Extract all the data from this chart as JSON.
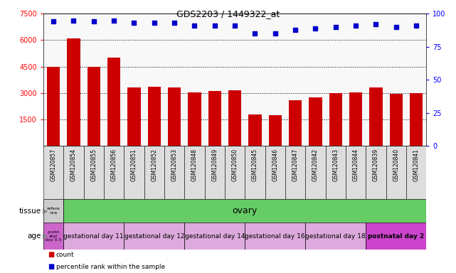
{
  "title": "GDS2203 / 1449322_at",
  "samples": [
    "GSM120857",
    "GSM120854",
    "GSM120855",
    "GSM120856",
    "GSM120851",
    "GSM120852",
    "GSM120853",
    "GSM120848",
    "GSM120849",
    "GSM120850",
    "GSM120845",
    "GSM120846",
    "GSM120847",
    "GSM120842",
    "GSM120843",
    "GSM120844",
    "GSM120839",
    "GSM120840",
    "GSM120841"
  ],
  "counts": [
    4500,
    6100,
    4500,
    5000,
    3300,
    3350,
    3300,
    3050,
    3100,
    3150,
    1800,
    1750,
    2600,
    2750,
    3000,
    3050,
    3300,
    2950,
    3000
  ],
  "percentiles": [
    94,
    95,
    94,
    95,
    93,
    93,
    93,
    91,
    91,
    91,
    85,
    85,
    88,
    89,
    90,
    91,
    92,
    90,
    91
  ],
  "ylim_left": [
    0,
    7500
  ],
  "yticks_left": [
    1500,
    3000,
    4500,
    6000,
    7500
  ],
  "ylim_right": [
    0,
    100
  ],
  "yticks_right": [
    0,
    25,
    50,
    75,
    100
  ],
  "bar_color": "#cc0000",
  "scatter_color": "#0000cc",
  "tissue_row": {
    "reference_label": "refere\nnce",
    "reference_color": "#cccccc",
    "ovary_label": "ovary",
    "ovary_color": "#66cc66"
  },
  "age_row": {
    "groups": [
      {
        "label": "postn\natal\nday 0.5",
        "color": "#cc66cc",
        "count": 1
      },
      {
        "label": "gestational day 11",
        "color": "#ddaadd",
        "count": 3
      },
      {
        "label": "gestational day 12",
        "color": "#ddaadd",
        "count": 3
      },
      {
        "label": "gestational day 14",
        "color": "#ddaadd",
        "count": 3
      },
      {
        "label": "gestational day 16",
        "color": "#ddaadd",
        "count": 3
      },
      {
        "label": "gestational day 18",
        "color": "#ddaadd",
        "count": 3
      },
      {
        "label": "postnatal day 2",
        "color": "#cc44cc",
        "count": 3
      }
    ]
  },
  "legend_count_color": "#cc0000",
  "legend_percentile_color": "#0000cc",
  "background_color": "#ffffff",
  "xlabel_bg_color": "#dddddd"
}
